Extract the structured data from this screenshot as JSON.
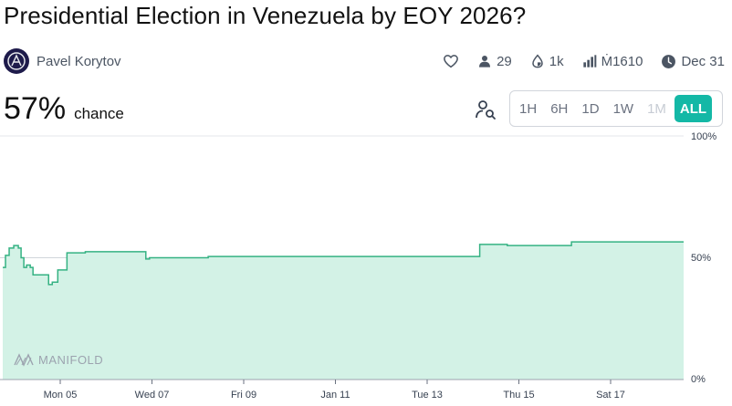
{
  "market": {
    "title": "Presidential Election in Venezuela by EOY 2026?",
    "creator": "Pavel Korytov",
    "probability": "57%",
    "probability_label": "chance"
  },
  "stats": {
    "traders": "29",
    "liquidity": "1k",
    "volume": "Ṁ1610",
    "close_date": "Dec 31"
  },
  "time_ranges": [
    {
      "label": "1H",
      "state": "normal"
    },
    {
      "label": "6H",
      "state": "normal"
    },
    {
      "label": "1D",
      "state": "normal"
    },
    {
      "label": "1W",
      "state": "normal"
    },
    {
      "label": "1M",
      "state": "disabled"
    },
    {
      "label": "ALL",
      "state": "active"
    }
  ],
  "watermark": "MANIFOLD",
  "colors": {
    "accent": "#14b8a6",
    "line": "#35b283",
    "fill": "#d3f2e6"
  },
  "chart_data": {
    "type": "area",
    "ylim": [
      0,
      100
    ],
    "y_ticks": [
      "100%",
      "50%",
      "0%"
    ],
    "x_ticks": [
      "Mon 05",
      "Wed 07",
      "Fri 09",
      "Jan 11",
      "Tue 13",
      "Thu 15",
      "Sat 17"
    ],
    "series": [
      {
        "x": [
          0,
          0.03,
          0.07,
          0.12,
          0.17,
          0.2,
          0.23,
          0.26,
          0.3,
          0.33,
          0.36,
          0.4,
          0.45,
          0.5,
          0.54,
          0.6,
          0.65,
          0.7,
          0.74,
          0.8,
          0.84,
          0.9,
          1.0,
          1.3,
          1.5,
          1.56,
          1.6,
          1.65,
          2.2,
          2.24,
          2.7,
          3.3,
          4.6,
          5.1,
          5.2,
          5.5,
          6.0,
          6.2,
          6.8
        ],
        "y": [
          46,
          51,
          54,
          55,
          54,
          50,
          46,
          47,
          46,
          43,
          43,
          43,
          43,
          39,
          40,
          45,
          45,
          52,
          52,
          52,
          52,
          52.5,
          52.5,
          52.5,
          52.5,
          49.5,
          50,
          50,
          50,
          50.5,
          50.5,
          50.5,
          50.5,
          50.5,
          55.5,
          55,
          55,
          56.5,
          56.5
        ]
      }
    ]
  }
}
